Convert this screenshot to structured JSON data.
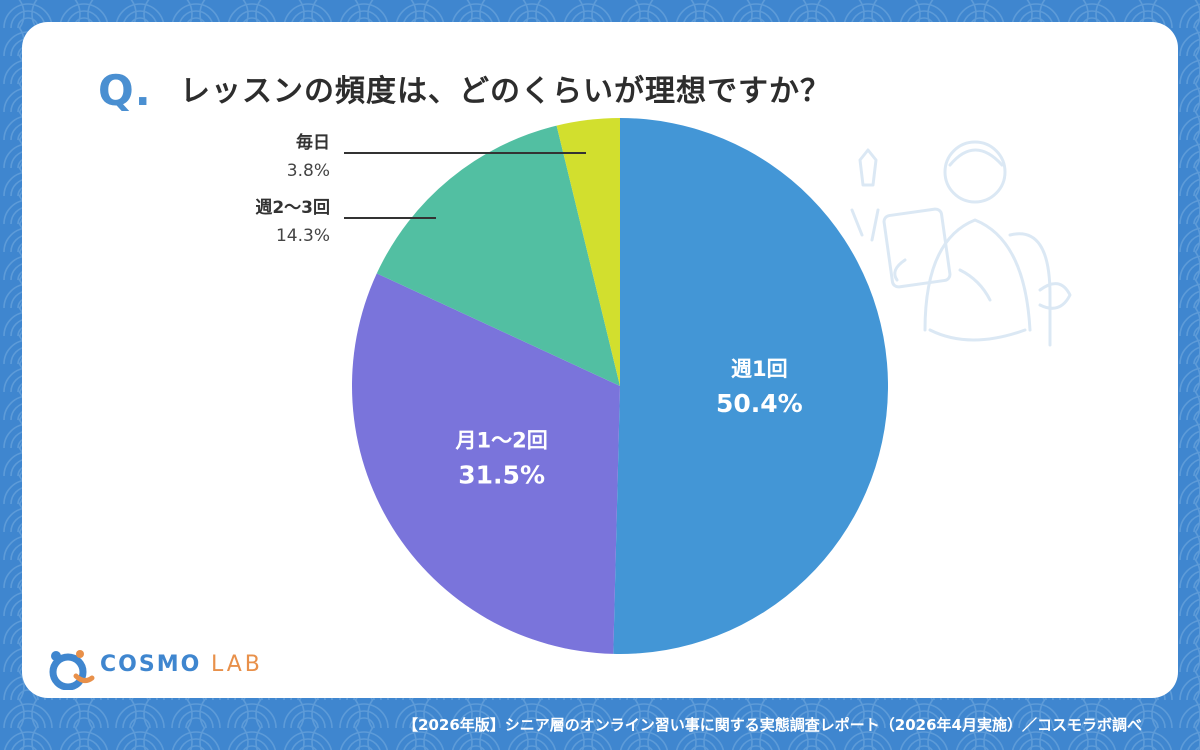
{
  "question": {
    "mark": "Q.",
    "text": "レッスンの頻度は、どのくらいが理想ですか？"
  },
  "chart_data": {
    "type": "pie",
    "start_angle_deg": 0,
    "direction": "clockwise",
    "slices": [
      {
        "label": "週1回",
        "value": 50.4,
        "value_label": "50.4%",
        "color": "#4396d6",
        "label_position": "inside"
      },
      {
        "label": "月1〜2回",
        "value": 31.5,
        "value_label": "31.5%",
        "color": "#7a74db",
        "label_position": "inside"
      },
      {
        "label": "週2〜3回",
        "value": 14.3,
        "value_label": "14.3%",
        "color": "#52bfa2",
        "label_position": "outside"
      },
      {
        "label": "毎日",
        "value": 3.8,
        "value_label": "3.8%",
        "color": "#d2df2e",
        "label_position": "outside"
      }
    ]
  },
  "brand": {
    "name_main": "COSMO",
    "name_sub": "LAB",
    "color_primary": "#3f86cf",
    "color_accent": "#e8904a"
  },
  "footer": "【2026年版】シニア層のオンライン習い事に関する実態調査レポート（2026年4月実施）／コスモラボ調べ",
  "colors": {
    "background": "#3f86cf",
    "card": "#ffffff",
    "accent": "#4a8fd1"
  }
}
